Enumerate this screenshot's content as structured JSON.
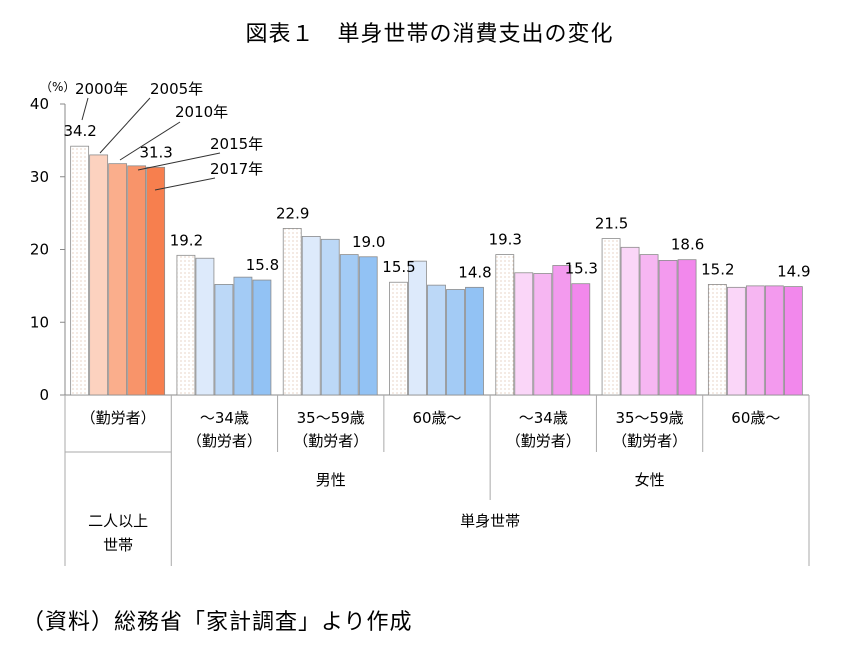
{
  "title": "図表１　単身世帯の消費支出の変化",
  "source": "（資料）総務省「家計調査」より作成",
  "chart_data": {
    "type": "bar",
    "y_unit": "（%）",
    "ylim": [
      0,
      40
    ],
    "yticks": [
      "0",
      "10",
      "20",
      "30",
      "40"
    ],
    "series": [
      {
        "name": "2000年",
        "values": [
          34.2,
          19.2,
          22.9,
          15.5,
          19.3,
          21.5,
          15.2
        ]
      },
      {
        "name": "2005年",
        "values": [
          33.0,
          18.8,
          21.8,
          18.4,
          16.8,
          20.3,
          14.8
        ]
      },
      {
        "name": "2010年",
        "values": [
          31.8,
          15.2,
          21.4,
          15.1,
          16.7,
          19.3,
          15.0
        ]
      },
      {
        "name": "2015年",
        "values": [
          31.5,
          16.2,
          19.3,
          14.5,
          17.8,
          18.5,
          15.0
        ]
      },
      {
        "name": "2017年",
        "values": [
          31.3,
          15.8,
          19.0,
          14.8,
          15.3,
          18.6,
          14.9
        ]
      }
    ],
    "categories": [
      "（勤労者）",
      "～34歳\n（勤労者）",
      "35～59歳\n（勤労者）",
      "60歳～",
      "～34歳\n（勤労者）",
      "35～59歳\n（勤労者）",
      "60歳～"
    ],
    "data_labels": [
      {
        "group": 0,
        "series": 0,
        "text": "34.2"
      },
      {
        "group": 0,
        "series": 4,
        "text": "31.3"
      },
      {
        "group": 1,
        "series": 0,
        "text": "19.2"
      },
      {
        "group": 1,
        "series": 4,
        "text": "15.8"
      },
      {
        "group": 2,
        "series": 0,
        "text": "22.9"
      },
      {
        "group": 2,
        "series": 4,
        "text": "19.0"
      },
      {
        "group": 3,
        "series": 0,
        "text": "15.5"
      },
      {
        "group": 3,
        "series": 4,
        "text": "14.8"
      },
      {
        "group": 4,
        "series": 0,
        "text": "19.3"
      },
      {
        "group": 4,
        "series": 4,
        "text": "15.3"
      },
      {
        "group": 5,
        "series": 0,
        "text": "21.5"
      },
      {
        "group": 5,
        "series": 4,
        "text": "18.6"
      },
      {
        "group": 6,
        "series": 0,
        "text": "15.2"
      },
      {
        "group": 6,
        "series": 4,
        "text": "14.9"
      }
    ],
    "gender_labels": [
      "男性",
      "女性"
    ],
    "household_labels": [
      "二人以上\n世帯",
      "単身世帯"
    ],
    "palettes": {
      "orange": [
        "#ffffff",
        "#fcd2bf",
        "#faae8c",
        "#f8946a",
        "#f77f4e"
      ],
      "blue": [
        "#ffffff",
        "#ddeafb",
        "#bcd8f7",
        "#a3cbf5",
        "#92c2f4"
      ],
      "pink": [
        "#ffffff",
        "#fad6f8",
        "#f6b6f2",
        "#f39aee",
        "#f288ec"
      ]
    },
    "group_palette": [
      "orange",
      "blue",
      "blue",
      "blue",
      "pink",
      "pink",
      "pink"
    ]
  }
}
